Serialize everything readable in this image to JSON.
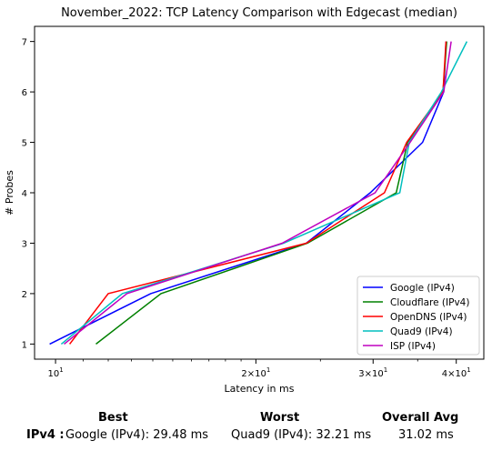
{
  "chart_data": {
    "type": "line",
    "title": "November_2022: TCP Latency Comparison with Edgecast (median)",
    "xlabel": "Latency in ms",
    "ylabel": "# Probes",
    "xscale": "log",
    "xlim": [
      9.3,
      44
    ],
    "ylim": [
      0.7,
      7.3
    ],
    "xticks": [
      {
        "value": 10,
        "label": "10",
        "sup": "1",
        "base": "10"
      },
      {
        "value": 20,
        "label": "2×10",
        "sup": "1",
        "base": "2×10"
      },
      {
        "value": 30,
        "label": "3×10",
        "sup": "1",
        "base": "3×10"
      },
      {
        "value": 40,
        "label": "4×10",
        "sup": "1",
        "base": "4×10"
      }
    ],
    "yticks": [
      "1",
      "2",
      "3",
      "4",
      "5",
      "6",
      "7"
    ],
    "grid": false,
    "legend_position": "lower-right",
    "series": [
      {
        "name": "Google (IPv4)",
        "color": "#0000ff",
        "points": [
          [
            9.8,
            1
          ],
          [
            13.9,
            2
          ],
          [
            23.8,
            3
          ],
          [
            29.7,
            4
          ],
          [
            35.6,
            5
          ],
          [
            38.3,
            6
          ],
          [
            38.6,
            7
          ]
        ]
      },
      {
        "name": "Cloudflare (IPv4)",
        "color": "#008000",
        "points": [
          [
            11.5,
            1
          ],
          [
            14.4,
            2
          ],
          [
            23.9,
            3
          ],
          [
            32.5,
            4
          ],
          [
            33.8,
            5
          ],
          [
            38.2,
            6
          ],
          [
            38.7,
            7
          ]
        ]
      },
      {
        "name": "OpenDNS (IPv4)",
        "color": "#ff0000",
        "points": [
          [
            10.5,
            1
          ],
          [
            12.0,
            2
          ],
          [
            23.8,
            3
          ],
          [
            31.2,
            4
          ],
          [
            33.7,
            5
          ],
          [
            38.2,
            6
          ],
          [
            38.6,
            7
          ]
        ]
      },
      {
        "name": "Quad9 (IPv4)",
        "color": "#00bfbf",
        "points": [
          [
            10.2,
            1
          ],
          [
            12.6,
            2
          ],
          [
            22.0,
            3
          ],
          [
            32.9,
            4
          ],
          [
            34.0,
            5
          ],
          [
            38.0,
            6
          ],
          [
            41.5,
            7
          ]
        ]
      },
      {
        "name": "ISP (IPv4)",
        "color": "#bf00bf",
        "points": [
          [
            10.3,
            1
          ],
          [
            12.8,
            2
          ],
          [
            21.9,
            3
          ],
          [
            30.2,
            4
          ],
          [
            34.1,
            5
          ],
          [
            38.3,
            6
          ],
          [
            39.3,
            7
          ]
        ]
      }
    ]
  },
  "summary": {
    "best_header": "Best",
    "worst_header": "Worst",
    "avg_header": "Overall Avg",
    "row_label": "IPv4 :",
    "best_value": "Google (IPv4): 29.48 ms",
    "worst_value": "Quad9 (IPv4): 32.21 ms",
    "avg_value": "31.02 ms"
  }
}
